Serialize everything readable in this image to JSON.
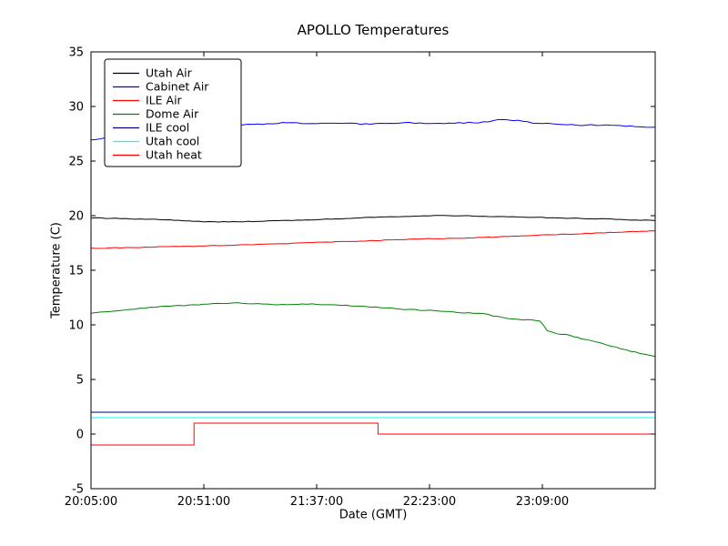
{
  "chart_data": {
    "type": "line",
    "title": "APOLLO Temperatures",
    "xlabel": "Date (GMT)",
    "ylabel": "Temperature (C)",
    "x_unit": "minutes since 20:05:00",
    "xlim": [
      0,
      230
    ],
    "ylim": [
      -5,
      35
    ],
    "grid": false,
    "legend_position": "upper left",
    "x_ticks": [
      {
        "value": 0,
        "label": "20:05:00"
      },
      {
        "value": 46,
        "label": "20:51:00"
      },
      {
        "value": 92,
        "label": "21:37:00"
      },
      {
        "value": 138,
        "label": "22:23:00"
      },
      {
        "value": 184,
        "label": "23:09:00"
      }
    ],
    "y_ticks": [
      -5,
      0,
      5,
      10,
      15,
      20,
      25,
      30,
      35
    ],
    "series": [
      {
        "name": "Utah Air",
        "color": "#000000",
        "noise": 0.03,
        "points": [
          [
            0,
            19.8
          ],
          [
            10,
            19.75
          ],
          [
            20,
            19.7
          ],
          [
            30,
            19.62
          ],
          [
            40,
            19.52
          ],
          [
            50,
            19.42
          ],
          [
            60,
            19.45
          ],
          [
            70,
            19.5
          ],
          [
            80,
            19.55
          ],
          [
            90,
            19.62
          ],
          [
            100,
            19.7
          ],
          [
            110,
            19.8
          ],
          [
            120,
            19.88
          ],
          [
            130,
            19.95
          ],
          [
            140,
            20.0
          ],
          [
            150,
            20.0
          ],
          [
            160,
            19.95
          ],
          [
            170,
            19.9
          ],
          [
            180,
            19.85
          ],
          [
            190,
            19.8
          ],
          [
            200,
            19.75
          ],
          [
            210,
            19.7
          ],
          [
            220,
            19.62
          ],
          [
            230,
            19.55
          ]
        ]
      },
      {
        "name": "Cabinet Air",
        "color": "#0000ff",
        "noise": 0.05,
        "points": [
          [
            0,
            26.9
          ],
          [
            10,
            27.3
          ],
          [
            20,
            27.65
          ],
          [
            30,
            27.9
          ],
          [
            40,
            28.1
          ],
          [
            50,
            28.2
          ],
          [
            60,
            28.3
          ],
          [
            70,
            28.4
          ],
          [
            80,
            28.5
          ],
          [
            90,
            28.45
          ],
          [
            100,
            28.5
          ],
          [
            110,
            28.4
          ],
          [
            120,
            28.45
          ],
          [
            130,
            28.5
          ],
          [
            140,
            28.45
          ],
          [
            150,
            28.5
          ],
          [
            160,
            28.55
          ],
          [
            168,
            28.85
          ],
          [
            174,
            28.7
          ],
          [
            180,
            28.5
          ],
          [
            190,
            28.4
          ],
          [
            200,
            28.3
          ],
          [
            210,
            28.3
          ],
          [
            220,
            28.2
          ],
          [
            230,
            28.1
          ]
        ]
      },
      {
        "name": "ILE Air",
        "color": "#ff0000",
        "noise": 0.03,
        "points": [
          [
            0,
            17.0
          ],
          [
            20,
            17.1
          ],
          [
            40,
            17.2
          ],
          [
            60,
            17.3
          ],
          [
            80,
            17.45
          ],
          [
            100,
            17.6
          ],
          [
            120,
            17.75
          ],
          [
            140,
            17.9
          ],
          [
            160,
            18.0
          ],
          [
            180,
            18.2
          ],
          [
            200,
            18.35
          ],
          [
            215,
            18.5
          ],
          [
            230,
            18.6
          ]
        ]
      },
      {
        "name": "Dome Air",
        "color": "#008000",
        "noise": 0.04,
        "points": [
          [
            0,
            11.1
          ],
          [
            10,
            11.3
          ],
          [
            20,
            11.5
          ],
          [
            30,
            11.7
          ],
          [
            40,
            11.8
          ],
          [
            50,
            11.95
          ],
          [
            60,
            12.0
          ],
          [
            70,
            11.9
          ],
          [
            80,
            11.85
          ],
          [
            90,
            11.9
          ],
          [
            100,
            11.8
          ],
          [
            110,
            11.7
          ],
          [
            120,
            11.55
          ],
          [
            130,
            11.4
          ],
          [
            140,
            11.3
          ],
          [
            150,
            11.15
          ],
          [
            160,
            11.0
          ],
          [
            170,
            10.6
          ],
          [
            178,
            10.45
          ],
          [
            183,
            10.35
          ],
          [
            186,
            9.5
          ],
          [
            190,
            9.2
          ],
          [
            195,
            9.05
          ],
          [
            200,
            8.75
          ],
          [
            210,
            8.2
          ],
          [
            220,
            7.6
          ],
          [
            230,
            7.1
          ]
        ]
      },
      {
        "name": "ILE cool",
        "color": "#000080",
        "noise": 0,
        "points": [
          [
            0,
            2.0
          ],
          [
            230,
            2.0
          ]
        ]
      },
      {
        "name": "Utah cool",
        "color": "#00ffff",
        "noise": 0,
        "points": [
          [
            0,
            1.5
          ],
          [
            230,
            1.5
          ]
        ]
      },
      {
        "name": "Utah heat",
        "color": "#ff0000",
        "noise": 0,
        "points": [
          [
            0,
            -1.0
          ],
          [
            42,
            -1.0
          ],
          [
            42,
            1.0
          ],
          [
            117,
            1.0
          ],
          [
            117,
            0.0
          ],
          [
            230,
            0.0
          ]
        ]
      }
    ]
  }
}
